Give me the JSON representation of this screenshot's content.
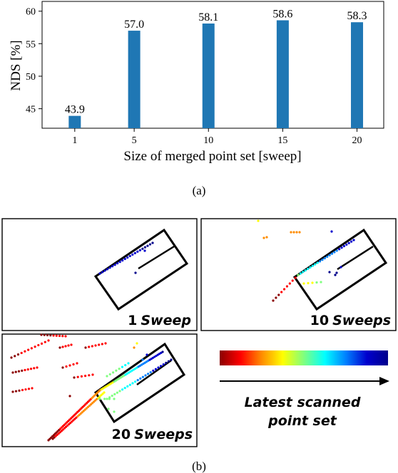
{
  "chart_data": {
    "type": "bar",
    "x": [
      1,
      5,
      10,
      15,
      20
    ],
    "values": [
      43.9,
      57.0,
      58.1,
      58.6,
      58.3
    ],
    "data_labels": [
      "43.9",
      "57.0",
      "58.1",
      "58.6",
      "58.3"
    ],
    "x_ticks": [
      "1",
      "5",
      "10",
      "15",
      "20"
    ],
    "y_ticks": [
      "45",
      "50",
      "55",
      "60"
    ],
    "ylim": [
      42,
      61.5
    ],
    "xlim": [
      -1.2,
      21.8
    ],
    "xlabel": "Size of merged point set [sweep]",
    "ylabel": "NDS [%]",
    "bar_color": "#1f77b4",
    "grid": false
  },
  "captions": {
    "a": "(a)",
    "b": "(b)"
  },
  "panels": {
    "one_sweep_number": "1",
    "one_sweep_word": "Sweep",
    "ten_sweeps_number": "10",
    "ten_sweeps_word": "Sweeps",
    "twenty_sweeps_number": "20",
    "twenty_sweeps_word": "Sweeps"
  },
  "legend": {
    "line1": "Latest scanned",
    "line2": "point set",
    "colormap": [
      "#8b0000",
      "#ff0000",
      "#ff8c00",
      "#ffff00",
      "#7fff7f",
      "#00ffff",
      "#0080ff",
      "#0000cd",
      "#00008b"
    ]
  }
}
